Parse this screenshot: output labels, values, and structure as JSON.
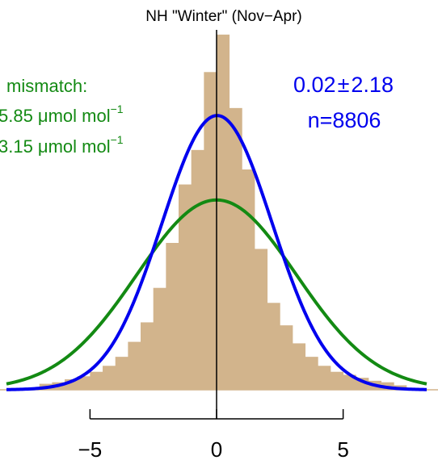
{
  "chart_data": {
    "type": "bar",
    "title": "NH \"Winter\" (Nov−Apr)",
    "xlabel": "",
    "ylabel": "",
    "xlim": [
      -8.3,
      8.3
    ],
    "ylim": [
      0,
      0.245
    ],
    "x_ticks": [
      -5,
      0,
      5
    ],
    "x_tick_labels": [
      "−5",
      "0",
      "5"
    ],
    "grid": false,
    "bin_width": 0.5,
    "histogram": {
      "color": "#d2b48c",
      "bins_left": [
        -7.0,
        -6.5,
        -6.0,
        -5.5,
        -5.0,
        -4.5,
        -4.0,
        -3.5,
        -3.0,
        -2.5,
        -2.0,
        -1.5,
        -1.0,
        -0.5,
        0.0,
        0.5,
        1.0,
        1.5,
        2.0,
        2.5,
        3.0,
        3.5,
        4.0,
        4.5,
        5.0,
        5.5,
        6.0,
        6.5,
        7.0
      ],
      "density": [
        0.004,
        0.005,
        0.007,
        0.009,
        0.012,
        0.016,
        0.022,
        0.032,
        0.045,
        0.068,
        0.098,
        0.137,
        0.16,
        0.212,
        0.237,
        0.188,
        0.147,
        0.094,
        0.058,
        0.043,
        0.031,
        0.022,
        0.016,
        0.012,
        0.01,
        0.008,
        0.006,
        0.005,
        0.003
      ]
    },
    "series": [
      {
        "name": "",
        "type": "normal-curve",
        "mean": 0.02,
        "sd": 2.18,
        "color": "#0000ee"
      },
      {
        "name": "",
        "type": "normal-curve",
        "mean": 0.0,
        "sd": 3.15,
        "color": "#138a13"
      }
    ],
    "annotations": {
      "green": {
        "line1": "mismatch:",
        "line2_value": "5.85 μmol mol",
        "line3_value": "3.15 μmol mol",
        "superscript": "−1"
      },
      "blue": {
        "line1_mean": "0.02",
        "line1_pm": "±",
        "line1_sd": "2.18",
        "line2": "n=8806"
      }
    },
    "vertical_line_x": 0
  }
}
